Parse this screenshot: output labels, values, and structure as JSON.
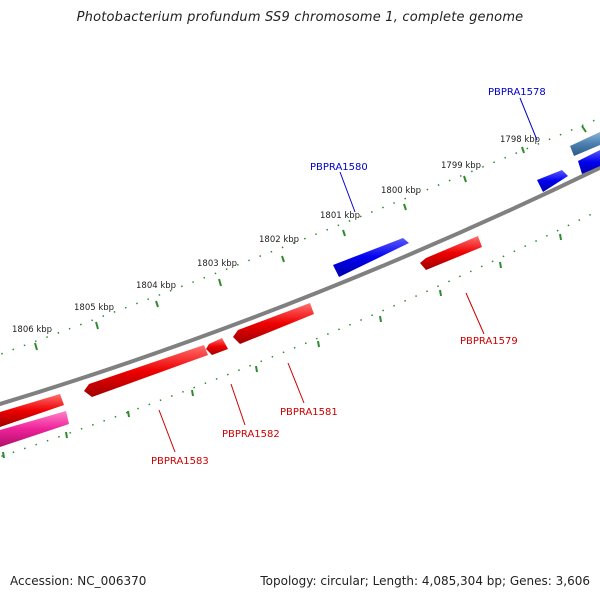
{
  "title": "Photobacterium profundum SS9 chromosome 1, complete genome",
  "footer": {
    "accession": "Accession: NC_006370",
    "summary": "Topology: circular; Length: 4,085,304 bp; Genes: 3,606"
  },
  "colors": {
    "backbone": "#808080",
    "tick_outer": "#2e8b2e",
    "forward_gene": "#0000ee",
    "reverse_gene": "#ee0000",
    "reverse_gene_pink": "#ee2299",
    "forward_gene_steel": "#4a7fb0",
    "forward_label": "#0000cc",
    "reverse_label": "#cc0000"
  },
  "scale_labels": [
    "1798 kbp",
    "1799 kbp",
    "1800 kbp",
    "1801 kbp",
    "1802 kbp",
    "1803 kbp",
    "1804 kbp",
    "1805 kbp",
    "1806 kbp"
  ],
  "gene_labels": {
    "PBPRA1578": "PBPRA1578",
    "PBPRA1580": "PBPRA1580",
    "PBPRA1579": "PBPRA1579",
    "PBPRA1581": "PBPRA1581",
    "PBPRA1582": "PBPRA1582",
    "PBPRA1583": "PBPRA1583"
  }
}
